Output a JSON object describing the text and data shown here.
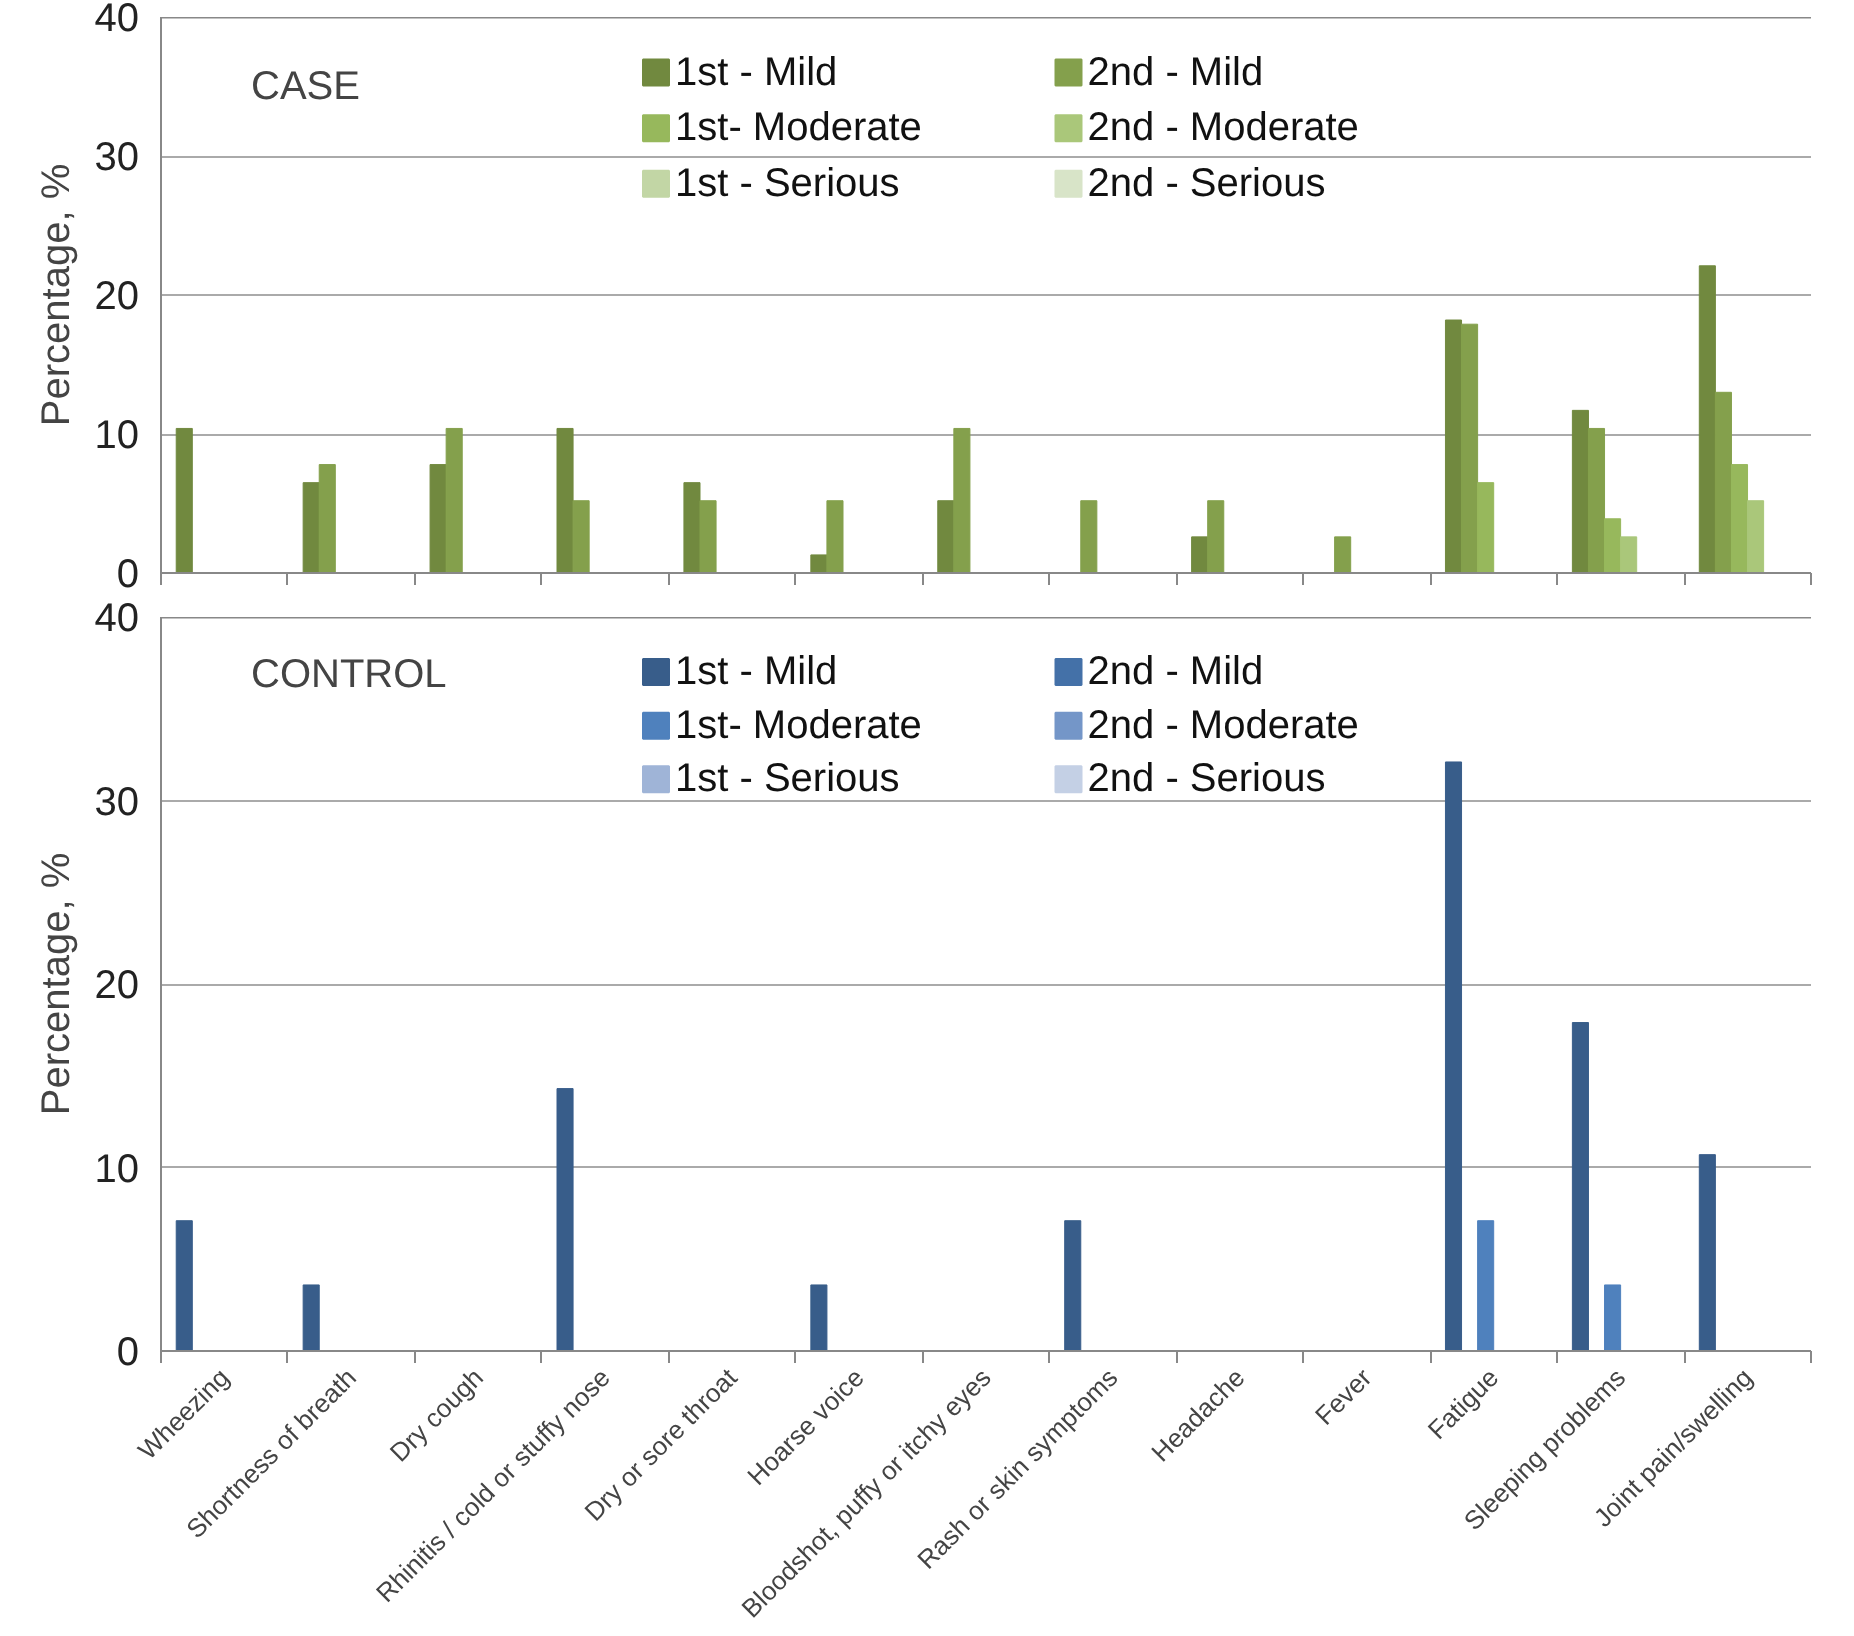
{
  "chart_data": [
    {
      "type": "bar",
      "annotations": [
        "CASE"
      ],
      "ylabel": "Percentage, %",
      "categories": [
        null,
        null,
        null,
        null,
        null,
        null,
        null,
        null,
        null,
        null,
        null,
        null,
        null
      ],
      "series": [
        {
          "name": "1st - Mild",
          "color": "#71893f",
          "values": [
            10.4,
            6.5,
            7.8,
            10.4,
            6.5,
            1.3,
            5.2,
            null,
            2.6,
            null,
            18.2,
            11.7,
            22.1
          ]
        },
        {
          "name": "2nd - Mild",
          "color": "#84a04c",
          "values": [
            null,
            7.8,
            10.4,
            5.2,
            5.2,
            5.2,
            10.4,
            5.2,
            5.2,
            2.6,
            17.9,
            10.4,
            13.0
          ]
        },
        {
          "name": "1st- Moderate",
          "color": "#97b85c",
          "values": [
            null,
            null,
            null,
            null,
            null,
            null,
            null,
            null,
            null,
            null,
            6.5,
            3.9,
            7.8
          ]
        },
        {
          "name": "2nd - Moderate",
          "color": "#aac77a",
          "values": [
            null,
            null,
            null,
            null,
            null,
            null,
            null,
            null,
            null,
            null,
            null,
            2.6,
            5.2
          ]
        },
        {
          "name": "1st - Serious",
          "color": "#c2d6a5",
          "values": [
            null,
            null,
            null,
            null,
            null,
            null,
            null,
            null,
            null,
            null,
            null,
            null,
            null
          ]
        },
        {
          "name": "2nd - Serious",
          "color": "#d8e4c8",
          "values": [
            null,
            null,
            null,
            null,
            null,
            null,
            null,
            null,
            null,
            null,
            null,
            null,
            null
          ]
        }
      ],
      "ylim": [
        0,
        40
      ],
      "yticks": [
        0,
        10,
        20,
        30,
        40
      ],
      "grid": "y",
      "legend": "top",
      "tick_labels": "y"
    },
    {
      "type": "bar",
      "annotations": [
        "CONTROL"
      ],
      "ylabel": "Percentage, %",
      "categories": [
        "Wheezing",
        "Shortness of breath",
        "Dry cough",
        "Rhinitis / cold or stuffy nose",
        "Dry or sore throat",
        "Hoarse voice",
        "Bloodshot, puffy or itchy eyes",
        "Rash or skin symptoms",
        "Headache",
        "Fever",
        "Fatigue",
        "Sleeping problems",
        "Joint pain/swelling"
      ],
      "series": [
        {
          "name": "1st - Mild",
          "color": "#385d8a",
          "values": [
            7.1,
            3.6,
            null,
            14.3,
            null,
            3.6,
            null,
            7.1,
            null,
            null,
            32.1,
            17.9,
            10.7
          ]
        },
        {
          "name": "2nd - Mild",
          "color": "#4471a8",
          "values": [
            null,
            null,
            null,
            null,
            null,
            null,
            null,
            null,
            null,
            null,
            null,
            null,
            null
          ]
        },
        {
          "name": "1st- Moderate",
          "color": "#4f81bd",
          "values": [
            null,
            null,
            null,
            null,
            null,
            null,
            null,
            null,
            null,
            null,
            7.1,
            3.6,
            null
          ]
        },
        {
          "name": "2nd - Moderate",
          "color": "#7496c8",
          "values": [
            null,
            null,
            null,
            null,
            null,
            null,
            null,
            null,
            null,
            null,
            null,
            null,
            null
          ]
        },
        {
          "name": "1st - Serious",
          "color": "#9fb4d7",
          "values": [
            null,
            null,
            null,
            null,
            null,
            null,
            null,
            null,
            null,
            null,
            null,
            null,
            null
          ]
        },
        {
          "name": "2nd - Serious",
          "color": "#c4d0e5",
          "values": [
            null,
            null,
            null,
            null,
            null,
            null,
            null,
            null,
            null,
            null,
            null,
            null,
            null
          ]
        }
      ],
      "ylim": [
        0,
        40
      ],
      "yticks": [
        0,
        10,
        20,
        30,
        40
      ],
      "grid": "y",
      "legend": "top"
    }
  ]
}
